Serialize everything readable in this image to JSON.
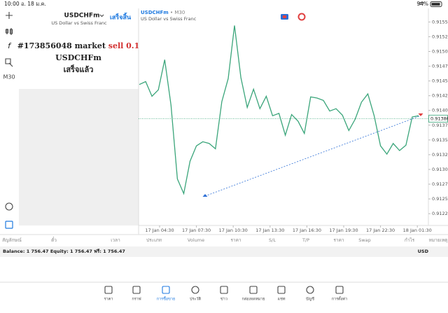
{
  "status_bar": {
    "time": "10:00",
    "date": "อ. 18 ม.ค.",
    "battery": "94%"
  },
  "left_toolbar": {
    "timeframe": "M30"
  },
  "order_panel": {
    "symbol": "USDCHFm",
    "description": "US Dollar vs Swiss Franc",
    "done_button": "เสร็จสิ้น",
    "order_prefix": "#173856048 market",
    "order_side": "sell 0.1",
    "order_symbol": "USDCHFm",
    "status": "เสร็จแล้ว"
  },
  "chart_data": {
    "type": "line",
    "title": "USDCHFm",
    "title_suffix": "• M30",
    "subtitle": "US Dollar vs Swiss Franc",
    "color": "#3aa57a",
    "values": [
      0.91444,
      0.91449,
      0.91424,
      0.91435,
      0.91486,
      0.91409,
      0.91284,
      0.91259,
      0.91314,
      0.9134,
      0.91347,
      0.91344,
      0.91335,
      0.91415,
      0.91454,
      0.91544,
      0.91456,
      0.91405,
      0.91436,
      0.91403,
      0.91424,
      0.91391,
      0.91395,
      0.91358,
      0.91393,
      0.91382,
      0.91361,
      0.91423,
      0.91421,
      0.91417,
      0.91399,
      0.91403,
      0.91392,
      0.91366,
      0.91385,
      0.91414,
      0.91428,
      0.91391,
      0.9134,
      0.91326,
      0.91344,
      0.91332,
      0.91341,
      0.91389,
      0.91391
    ],
    "x_labels": [
      "17 Jan 04:30",
      "17 Jan 07:30",
      "17 Jan 10:30",
      "17 Jan 13:30",
      "17 Jan 16:30",
      "17 Jan 19:30",
      "17 Jan 22:30",
      "18 Jan 01:30"
    ],
    "ylim": [
      0.91205,
      0.91573
    ],
    "yticks": [
      {
        "value": 0.9155,
        "label": "0.91550"
      },
      {
        "value": 0.91525,
        "label": "0.91525"
      },
      {
        "value": 0.915,
        "label": "0.91500"
      },
      {
        "value": 0.91475,
        "label": "0.91475"
      },
      {
        "value": 0.9145,
        "label": "0.91450"
      },
      {
        "value": 0.91425,
        "label": "0.91425"
      },
      {
        "value": 0.914,
        "label": "0.91400"
      },
      {
        "value": 0.91375,
        "label": "0.91375"
      },
      {
        "value": 0.9135,
        "label": "0.91350"
      },
      {
        "value": 0.91325,
        "label": "0.91325"
      },
      {
        "value": 0.913,
        "label": "0.91300"
      },
      {
        "value": 0.91275,
        "label": "0.91275"
      },
      {
        "value": 0.9125,
        "label": "0.91250"
      },
      {
        "value": 0.91225,
        "label": "0.91225"
      }
    ],
    "current_price": {
      "value": 0.91386,
      "label": "0.91386"
    }
  },
  "table": {
    "columns": [
      "สัญลักษณ์",
      "ตั๋ว",
      "เวลา",
      "ประเภท",
      "Volume",
      "ราคา",
      "S/L",
      "T/P",
      "ราคา",
      "Swap",
      "กำไร",
      "หมายเหตุ"
    ],
    "balance": "Balance: 1 756.47 Equity: 1 756.47 ฟรี: 1 756.47",
    "currency": "USD"
  },
  "tab_bar": {
    "tabs": [
      "ราคา",
      "กราฟ",
      "การซื้อขาย",
      "ประวัติ",
      "ข่าว",
      "กล่องจดหมาย",
      "แชท",
      "บัญชี",
      "การตั้งค่า"
    ],
    "active": 2
  }
}
